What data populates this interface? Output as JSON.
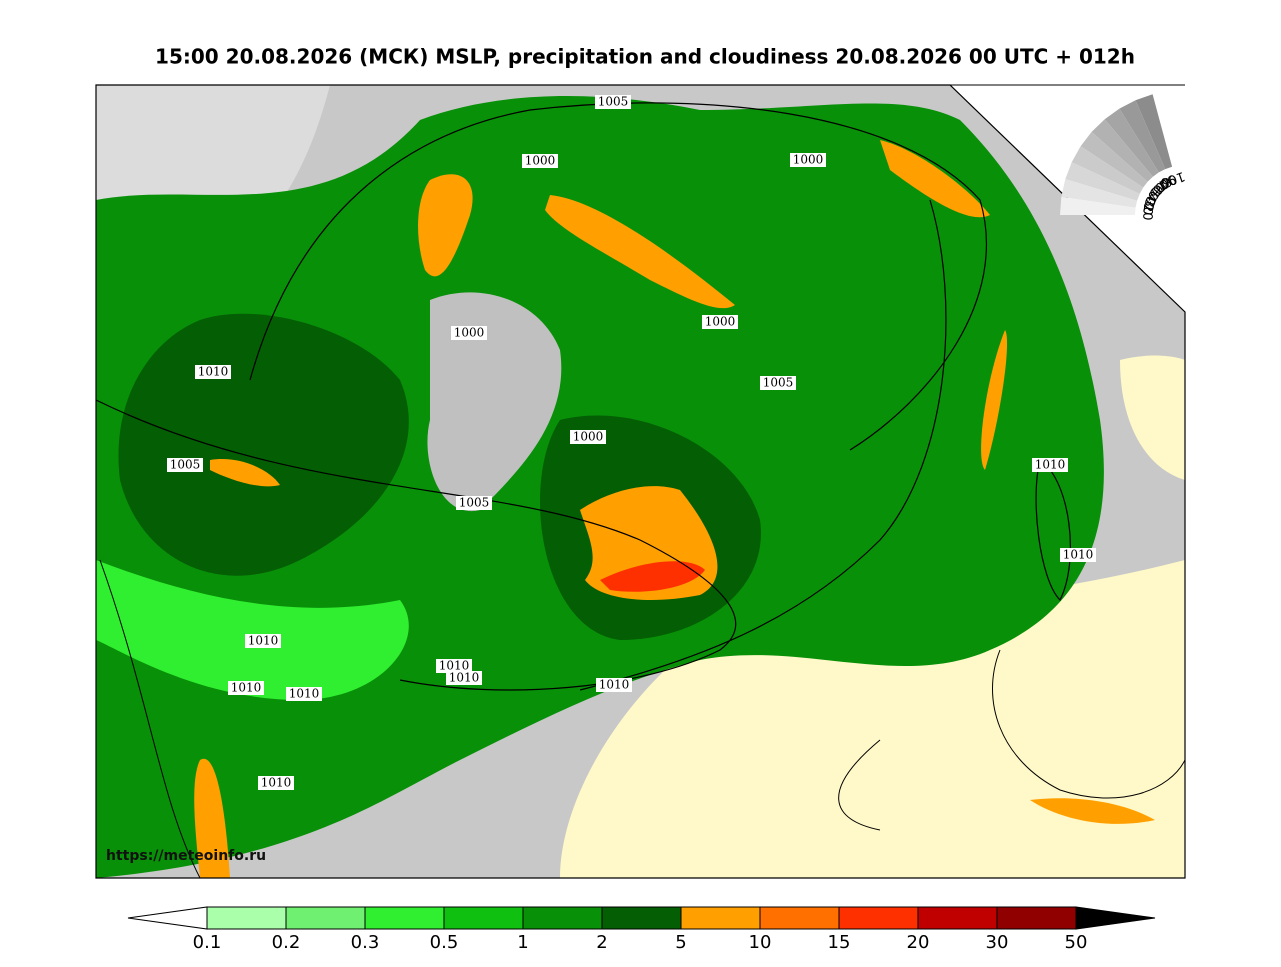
{
  "title": "15:00 20.08.2026 (МСК) MSLP, precipitation and cloudiness 20.08.2026 00 UTC + 012h",
  "isobar_labels": [
    1005,
    1000,
    1000,
    1000,
    1000,
    1010,
    1005,
    1000,
    1005,
    1010,
    1005,
    1010,
    1010,
    1010,
    1010,
    1010,
    1010,
    1010,
    1010
  ],
  "cloud_scale": {
    "labels": [
      100,
      90,
      80,
      70,
      60,
      50,
      40,
      30,
      20
    ]
  },
  "colorbar": {
    "levels": [
      0.1,
      0.2,
      0.3,
      0.5,
      1,
      2,
      5,
      10,
      15,
      20,
      30,
      50
    ],
    "colors": [
      "#aaffaa",
      "#70f070",
      "#30ee30",
      "#10c010",
      "#089008",
      "#045e04",
      "#ffa000",
      "#ff7000",
      "#ff3000",
      "#c00000",
      "#900000"
    ]
  },
  "source": "https://meteoinfo.ru"
}
